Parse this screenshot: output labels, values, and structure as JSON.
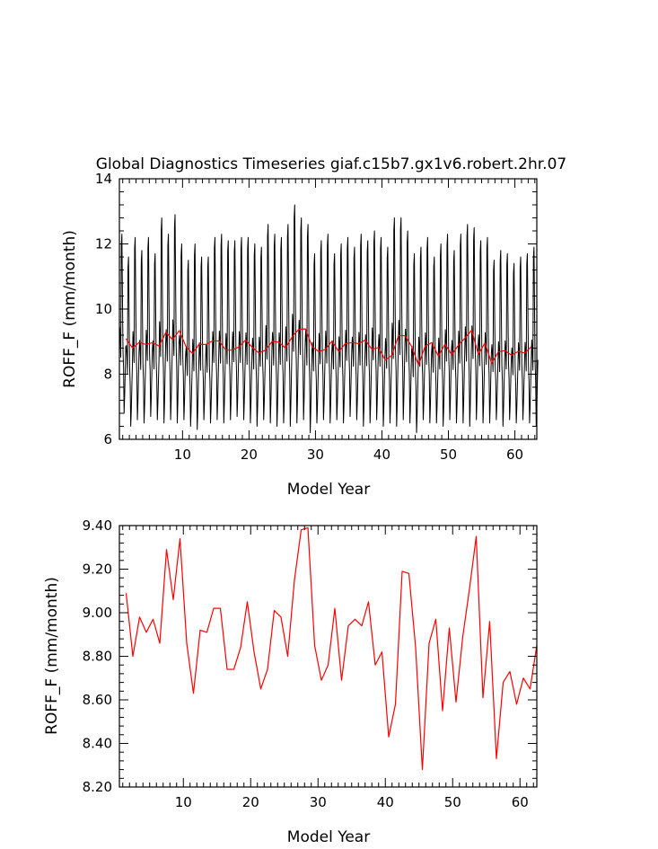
{
  "chart_data": [
    {
      "type": "line",
      "title": "Global Diagnostics Timeseries giaf.c15b7.gx1v6.robert.2hr.07",
      "xlabel": "Model Year",
      "ylabel": "ROFF_F (mm/month)",
      "xlim": [
        0.5,
        63.3
      ],
      "ylim": [
        6,
        14
      ],
      "x_ticks": [
        10,
        20,
        30,
        40,
        50,
        60
      ],
      "x_tick_labels": [
        "10",
        "20",
        "30",
        "40",
        "50",
        "60"
      ],
      "y_ticks": [
        6,
        8,
        10,
        12,
        14
      ],
      "y_tick_labels": [
        "6",
        "8",
        "10",
        "12",
        "14"
      ],
      "grid": false,
      "series": [
        {
          "color": "#000000",
          "kind": "monthly",
          "annual_max": [
            12.3,
            11.6,
            12.2,
            11.8,
            12.2,
            11.7,
            12.8,
            12.3,
            12.9,
            12.0,
            11.5,
            12.0,
            11.6,
            11.6,
            12.2,
            12.3,
            12.1,
            12.1,
            12.2,
            12.2,
            12.0,
            11.9,
            12.6,
            12.3,
            12.2,
            12.6,
            13.2,
            12.8,
            12.6,
            11.7,
            12.1,
            12.3,
            11.7,
            12.0,
            12.2,
            11.9,
            12.3,
            12.1,
            12.4,
            12.2,
            11.9,
            12.8,
            12.8,
            12.4,
            11.7,
            11.9,
            12.2,
            11.6,
            12.0,
            12.3,
            11.8,
            12.3,
            12.6,
            12.5,
            12.1,
            12.2,
            11.5,
            11.8,
            11.7,
            11.4,
            11.6,
            11.7,
            11.9
          ],
          "annual_min": [
            6.8,
            6.4,
            6.6,
            6.5,
            6.7,
            6.6,
            6.5,
            6.6,
            6.5,
            6.6,
            6.4,
            6.3,
            6.6,
            6.5,
            6.6,
            6.5,
            6.6,
            6.7,
            6.6,
            6.5,
            6.4,
            6.6,
            6.5,
            6.4,
            6.5,
            6.4,
            6.5,
            6.6,
            6.2,
            6.5,
            6.6,
            6.5,
            6.6,
            6.5,
            6.7,
            6.6,
            6.4,
            6.5,
            6.6,
            6.4,
            6.5,
            6.4,
            6.6,
            6.5,
            6.2,
            6.6,
            6.5,
            6.5,
            6.4,
            6.6,
            6.5,
            6.5,
            6.4,
            6.6,
            6.5,
            6.5,
            6.6,
            6.4,
            6.6,
            6.5,
            6.6,
            6.5,
            6.4
          ]
        },
        {
          "color": "#ff0000",
          "kind": "annual",
          "values": [
            9.09,
            8.8,
            8.98,
            8.91,
            8.97,
            8.86,
            9.29,
            9.06,
            9.34,
            8.86,
            8.63,
            8.92,
            8.91,
            9.02,
            9.02,
            8.74,
            8.74,
            8.84,
            9.05,
            8.82,
            8.65,
            8.74,
            9.01,
            8.98,
            8.8,
            9.15,
            9.38,
            9.39,
            8.85,
            8.69,
            8.76,
            9.02,
            8.69,
            8.94,
            8.97,
            8.94,
            9.05,
            8.76,
            8.82,
            8.43,
            8.58,
            9.19,
            9.18,
            8.84,
            8.28,
            8.86,
            8.97,
            8.55,
            8.93,
            8.59,
            8.89,
            9.11,
            9.35,
            8.61,
            8.96,
            8.33,
            8.68,
            8.73,
            8.58,
            8.7,
            8.65,
            8.85
          ]
        }
      ]
    },
    {
      "type": "line",
      "title": "",
      "xlabel": "Model Year",
      "ylabel": "ROFF_F (mm/month)",
      "xlim": [
        0.5,
        62.5
      ],
      "ylim": [
        8.2,
        9.4
      ],
      "x_ticks": [
        10,
        20,
        30,
        40,
        50,
        60
      ],
      "x_tick_labels": [
        "10",
        "20",
        "30",
        "40",
        "50",
        "60"
      ],
      "y_ticks": [
        8.2,
        8.4,
        8.6,
        8.8,
        9.0,
        9.2,
        9.4
      ],
      "y_tick_labels": [
        "8.20",
        "8.40",
        "8.60",
        "8.80",
        "9.00",
        "9.20",
        "9.40"
      ],
      "grid": false,
      "series": [
        {
          "color": "#ff0000",
          "kind": "annual",
          "values": [
            9.09,
            8.8,
            8.98,
            8.91,
            8.97,
            8.86,
            9.29,
            9.06,
            9.34,
            8.86,
            8.63,
            8.92,
            8.91,
            9.02,
            9.02,
            8.74,
            8.74,
            8.84,
            9.05,
            8.82,
            8.65,
            8.74,
            9.01,
            8.98,
            8.8,
            9.15,
            9.38,
            9.39,
            8.85,
            8.69,
            8.76,
            9.02,
            8.69,
            8.94,
            8.97,
            8.94,
            9.05,
            8.76,
            8.82,
            8.43,
            8.58,
            9.19,
            9.18,
            8.84,
            8.28,
            8.86,
            8.97,
            8.55,
            8.93,
            8.59,
            8.89,
            9.11,
            9.35,
            8.61,
            8.96,
            8.33,
            8.68,
            8.73,
            8.58,
            8.7,
            8.65,
            8.85
          ]
        }
      ]
    }
  ]
}
